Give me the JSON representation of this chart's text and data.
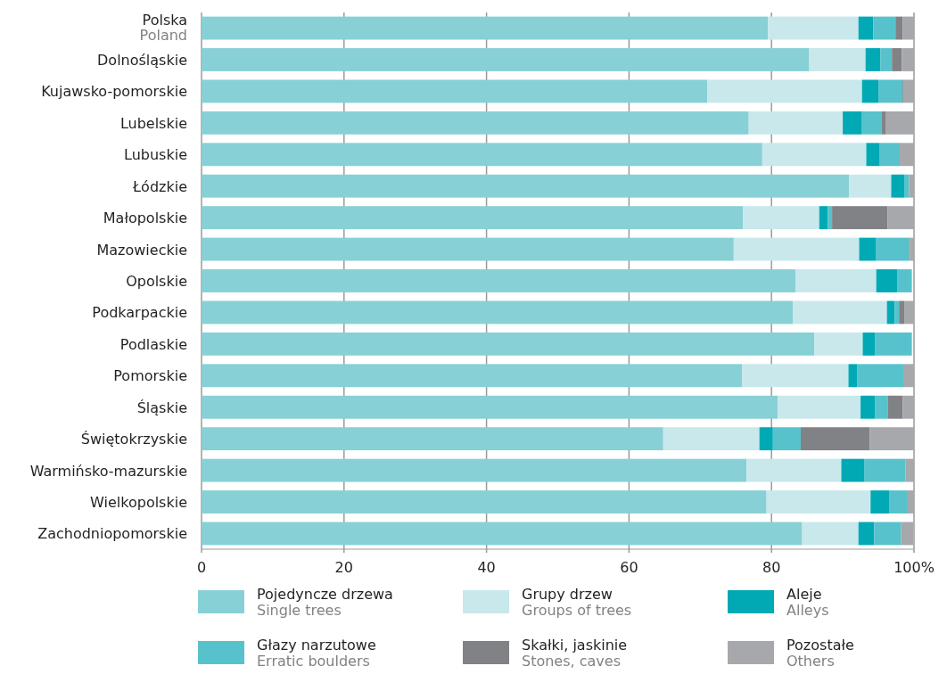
{
  "chart_data": {
    "type": "bar",
    "orientation": "horizontal",
    "stacked": true,
    "categories": [
      "Polska\nPoland",
      "Dolnośląskie",
      "Kujawsko-pomorskie",
      "Lubelskie",
      "Lubuskie",
      "Łódzkie",
      "Małopolskie",
      "Mazowieckie",
      "Opolskie",
      "Podkarpackie",
      "Podlaskie",
      "Pomorskie",
      "Śląskie",
      "Świętokrzyskie",
      "Warmińsko-mazurskie",
      "Wielkopolskie",
      "Zachodniopomorskie"
    ],
    "series": [
      {
        "name": "Pojedyncze drzewa\nSingle trees",
        "color": "#87d0d6",
        "values": [
          79.5,
          85.3,
          71.0,
          76.8,
          78.7,
          90.9,
          76.0,
          74.7,
          83.4,
          83.0,
          86.0,
          75.9,
          80.9,
          64.8,
          76.5,
          79.3,
          84.3
        ]
      },
      {
        "name": "Grupy drzew\nGroups of trees",
        "color": "#c9e8eb",
        "values": [
          12.7,
          7.9,
          21.7,
          13.2,
          14.6,
          5.9,
          10.7,
          17.6,
          11.3,
          13.2,
          6.8,
          14.9,
          11.6,
          13.5,
          13.3,
          14.6,
          7.9
        ]
      },
      {
        "name": "Aleje\nAlleys",
        "color": "#00a9b4",
        "values": [
          2.1,
          2.1,
          2.3,
          2.7,
          1.9,
          1.9,
          1.2,
          2.4,
          3.0,
          1.1,
          1.7,
          1.2,
          2.0,
          1.9,
          3.2,
          2.6,
          2.2
        ]
      },
      {
        "name": "Głazy narzutowe\nErratic boulders",
        "color": "#57c2cb",
        "values": [
          3.1,
          1.6,
          3.4,
          2.8,
          2.8,
          0.6,
          0.6,
          4.6,
          2.0,
          0.6,
          5.2,
          6.5,
          1.8,
          3.9,
          5.8,
          2.5,
          3.8
        ]
      },
      {
        "name": "Skałki, jaskinie\nStones, caves",
        "color": "#818286",
        "values": [
          1.0,
          1.4,
          0.1,
          0.5,
          0,
          0,
          7.8,
          0.1,
          null,
          0.8,
          null,
          0,
          2.1,
          9.7,
          0,
          0,
          null
        ]
      },
      {
        "name": "Pozostałe\nOthers",
        "color": "#a7a8ac",
        "values": [
          1.6,
          1.7,
          1.5,
          4.0,
          2.0,
          0.7,
          3.7,
          0.6,
          null,
          1.3,
          null,
          1.5,
          1.6,
          6.2,
          1.2,
          1.0,
          1.7
        ]
      }
    ],
    "xlim": [
      0,
      100
    ],
    "xticks": [
      0,
      20,
      40,
      60,
      80,
      {
        "value": 100,
        "label": "100%"
      }
    ],
    "grid": "x",
    "legend": "bottom"
  }
}
